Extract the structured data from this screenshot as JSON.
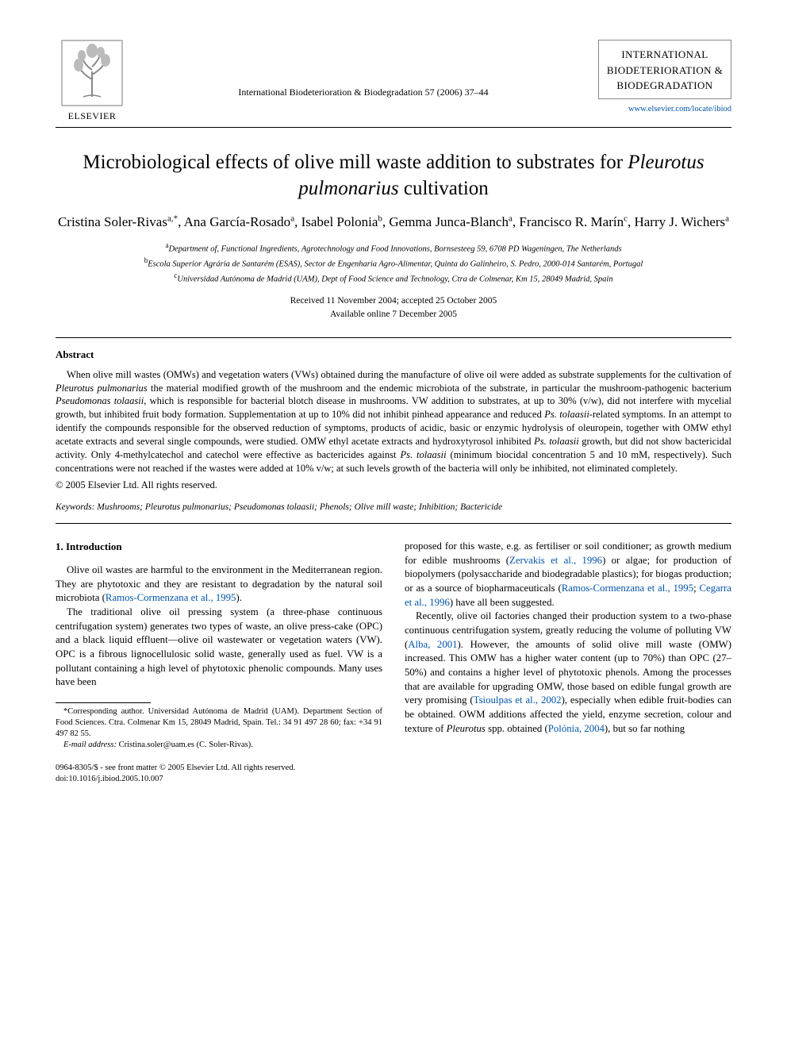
{
  "header": {
    "publisher_label": "ELSEVIER",
    "journal_ref": "International Biodeterioration & Biodegradation 57 (2006) 37–44",
    "journal_box_lines": [
      "INTERNATIONAL",
      "BIODETERIORATION &",
      "BIODEGRADATION"
    ],
    "journal_link": "www.elsevier.com/locate/ibiod",
    "logo_colors": {
      "border": "#777777",
      "fill": "#cfcfcf"
    }
  },
  "title": {
    "pre": "Microbiological effects of olive mill waste addition to substrates for ",
    "species": "Pleurotus pulmonarius",
    "post": " cultivation"
  },
  "authors": [
    {
      "name": "Cristina Soler-Rivas",
      "aff": "a,",
      "corr": "*"
    },
    {
      "name": "Ana García-Rosado",
      "aff": "a"
    },
    {
      "name": "Isabel Polonia",
      "aff": "b"
    },
    {
      "name": "Gemma Junca-Blanch",
      "aff": "a"
    },
    {
      "name": "Francisco R. Marín",
      "aff": "c"
    },
    {
      "name": "Harry J. Wichers",
      "aff": "a"
    }
  ],
  "affiliations": {
    "a": "Department of, Functional Ingredients, Agrotechnology and Food Innovations, Bornsesteeg 59, 6708 PD Wageningen, The Netherlands",
    "b": "Escola Superior Agrária de Santarém (ESAS), Sector de Engenharia Agro-Alimentar, Quinta do Galinheiro, S. Pedro, 2000-014 Santarém, Portugal",
    "c": "Universidad Autónoma de Madrid (UAM), Dept of Food Science and Technology, Ctra de Colmenar, Km 15, 28049 Madrid, Spain"
  },
  "dates": {
    "received_accepted": "Received 11 November 2004; accepted 25 October 2005",
    "online": "Available online 7 December 2005"
  },
  "abstract": {
    "heading": "Abstract",
    "text_parts": [
      {
        "t": "When olive mill wastes (OMWs) and vegetation waters (VWs) obtained during the manufacture of olive oil were added as substrate supplements for the cultivation of "
      },
      {
        "t": "Pleurotus pulmonarius",
        "i": true
      },
      {
        "t": " the material modified growth of the mushroom and the endemic microbiota of the substrate, in particular the mushroom-pathogenic bacterium "
      },
      {
        "t": "Pseudomonas tolaasii",
        "i": true
      },
      {
        "t": ", which is responsible for bacterial blotch disease in mushrooms. VW addition to substrates, at up to 30% (v/w), did not interfere with mycelial growth, but inhibited fruit body formation. Supplementation at up to 10% did not inhibit pinhead appearance and reduced "
      },
      {
        "t": "Ps. tolaasii",
        "i": true
      },
      {
        "t": "-related symptoms. In an attempt to identify the compounds responsible for the observed reduction of symptoms, products of acidic, basic or enzymic hydrolysis of oleuropein, together with OMW ethyl acetate extracts and several single compounds, were studied. OMW ethyl acetate extracts and hydroxytyrosol inhibited "
      },
      {
        "t": "Ps. tolaasii",
        "i": true
      },
      {
        "t": " growth, but did not show bactericidal activity. Only 4-methylcatechol and catechol were effective as bactericides against "
      },
      {
        "t": "Ps. tolaasii",
        "i": true
      },
      {
        "t": " (minimum biocidal concentration 5 and 10 mM, respectively). Such concentrations were not reached if the wastes were added at 10% v/w; at such levels growth of the bacteria will only be inhibited, not eliminated completely."
      }
    ],
    "copyright": "© 2005 Elsevier Ltd. All rights reserved."
  },
  "keywords": {
    "label": "Keywords:",
    "text": " Mushrooms; Pleurotus pulmonarius; Pseudomonas tolaasii; Phenols; Olive mill waste; Inhibition; Bactericide"
  },
  "body": {
    "intro_heading": "1. Introduction",
    "left_paragraphs": [
      [
        {
          "t": "Olive oil wastes are harmful to the environment in the Mediterranean region. They are phytotoxic and they are resistant to degradation by the natural soil microbiota ("
        },
        {
          "t": "Ramos-Cormenzana et al., 1995",
          "link": true
        },
        {
          "t": ")."
        }
      ],
      [
        {
          "t": "The traditional olive oil pressing system (a three-phase continuous centrifugation system) generates two types of waste, an olive press-cake (OPC) and a black liquid effluent—olive oil wastewater or vegetation waters (VW). OPC is a fibrous lignocellulosic solid waste, generally used as fuel. VW is a pollutant containing a high level of phytotoxic phenolic compounds. Many uses have been"
        }
      ]
    ],
    "right_paragraphs": [
      [
        {
          "t": "proposed for this waste, e.g. as fertiliser or soil conditioner; as growth medium for edible mushrooms ("
        },
        {
          "t": "Zervakis et al., 1996",
          "link": true
        },
        {
          "t": ") or algae; for production of biopolymers (polysaccharide and biodegradable plastics); for biogas production; or as a source of biopharmaceuticals ("
        },
        {
          "t": "Ramos-Cormenzana et al., 1995",
          "link": true
        },
        {
          "t": "; "
        },
        {
          "t": "Cegarra et al., 1996",
          "link": true
        },
        {
          "t": ") have all been suggested."
        }
      ],
      [
        {
          "t": "Recently, olive oil factories changed their production system to a two-phase continuous centrifugation system, greatly reducing the volume of polluting VW ("
        },
        {
          "t": "Alba, 2001",
          "link": true
        },
        {
          "t": "). However, the amounts of solid olive mill waste (OMW) increased. This OMW has a higher water content (up to 70%) than OPC (27–50%) and contains a higher level of phytotoxic phenols. Among the processes that are available for upgrading OMW, those based on edible fungal growth are very promising ("
        },
        {
          "t": "Tsioulpas et al., 2002",
          "link": true
        },
        {
          "t": "), especially when edible fruit-bodies can be obtained. OWM additions affected the yield, enzyme secretion, colour and texture of "
        },
        {
          "t": "Pleurotus",
          "i": true
        },
        {
          "t": " spp. obtained ("
        },
        {
          "t": "Polónia, 2004",
          "link": true
        },
        {
          "t": "), but so far nothing"
        }
      ]
    ]
  },
  "footnotes": {
    "corr": "*Corresponding author. Universidad Autónoma de Madrid (UAM). Department Section of Food Sciences. Ctra. Colmenar Km 15, 28049 Madrid, Spain. Tel.: 34 91 497 28 60; fax: +34 91 497 82 55.",
    "email_label": "E-mail address:",
    "email": "Cristina.soler@uam.es (C. Soler-Rivas)."
  },
  "bottom": {
    "issn": "0964-8305/$ - see front matter © 2005 Elsevier Ltd. All rights reserved.",
    "doi": "doi:10.1016/j.ibiod.2005.10.007"
  },
  "colors": {
    "link": "#0054a6",
    "text": "#000000",
    "background": "#ffffff"
  }
}
